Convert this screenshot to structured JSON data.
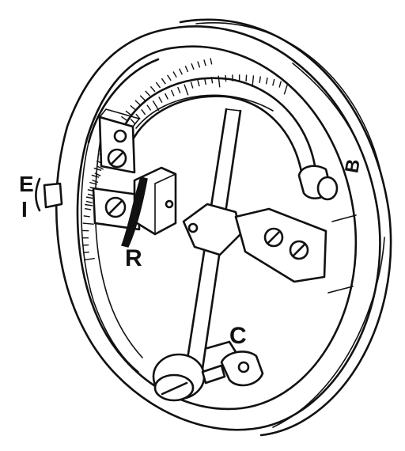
{
  "figure": {
    "labels": {
      "E": "E",
      "I": "I",
      "R": "R",
      "C": "C",
      "B": "B"
    },
    "colors": {
      "ink": "#111111",
      "paper": "#ffffff"
    }
  }
}
